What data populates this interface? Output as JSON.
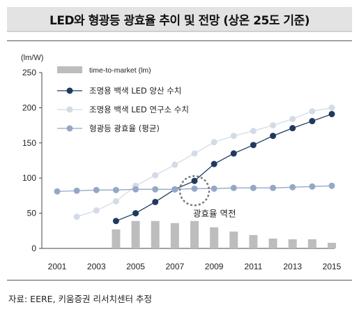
{
  "title": "LED와 형광등 광효율 추이 및 전망 (상온 25도 기준)",
  "source": "자료: EERE, 키움증권 리서치센터 추정",
  "chart_data": {
    "type": "bar",
    "y_unit": "(lm/W)",
    "x": [
      2001,
      2002,
      2003,
      2004,
      2005,
      2006,
      2007,
      2008,
      2009,
      2010,
      2011,
      2012,
      2013,
      2014,
      2015
    ],
    "x_tick_labels": [
      "2001",
      "2003",
      "2005",
      "2007",
      "2009",
      "2011",
      "2013",
      "2015"
    ],
    "ylim": [
      0,
      250
    ],
    "y_ticks": [
      0,
      50,
      100,
      150,
      200,
      250
    ],
    "legend_position": "top-left",
    "series": [
      {
        "name": "time-to-market (lm)",
        "type": "bar",
        "color": "#bdbdbd",
        "x": [
          2004,
          2005,
          2006,
          2007,
          2008,
          2009,
          2010,
          2011,
          2012,
          2013,
          2014,
          2015
        ],
        "values": [
          27,
          39,
          39,
          36,
          39,
          30,
          24,
          19,
          14,
          13,
          13,
          8
        ]
      },
      {
        "name": "조명용 백색 LED 양산 수치",
        "type": "line",
        "color": "#1f3a5f",
        "x": [
          2004,
          2005,
          2006,
          2007,
          2008,
          2009,
          2010,
          2011,
          2012,
          2013,
          2014,
          2015
        ],
        "values": [
          39,
          50,
          66,
          84,
          96,
          120,
          135,
          147,
          160,
          171,
          181,
          191
        ]
      },
      {
        "name": "조명용 백색 LED 연구소 수치",
        "type": "line",
        "color": "#d3dbe6",
        "x": [
          2002,
          2003,
          2004,
          2005,
          2006,
          2007,
          2008,
          2009,
          2010,
          2011,
          2012,
          2013,
          2014,
          2015
        ],
        "values": [
          45,
          54,
          67,
          89,
          104,
          119,
          135,
          151,
          160,
          167,
          175,
          184,
          195,
          200
        ]
      },
      {
        "name": "형광등 광효율 (평균)",
        "type": "line",
        "color": "#94a8c6",
        "x": [
          2001,
          2002,
          2003,
          2004,
          2005,
          2006,
          2007,
          2008,
          2009,
          2010,
          2011,
          2012,
          2013,
          2014,
          2015
        ],
        "values": [
          81,
          82,
          83,
          83,
          84,
          84,
          84,
          85,
          85,
          86,
          86,
          86,
          87,
          88,
          89
        ]
      }
    ],
    "annotation": {
      "text": "광효율 역전",
      "x": 2008,
      "y": 85
    }
  }
}
